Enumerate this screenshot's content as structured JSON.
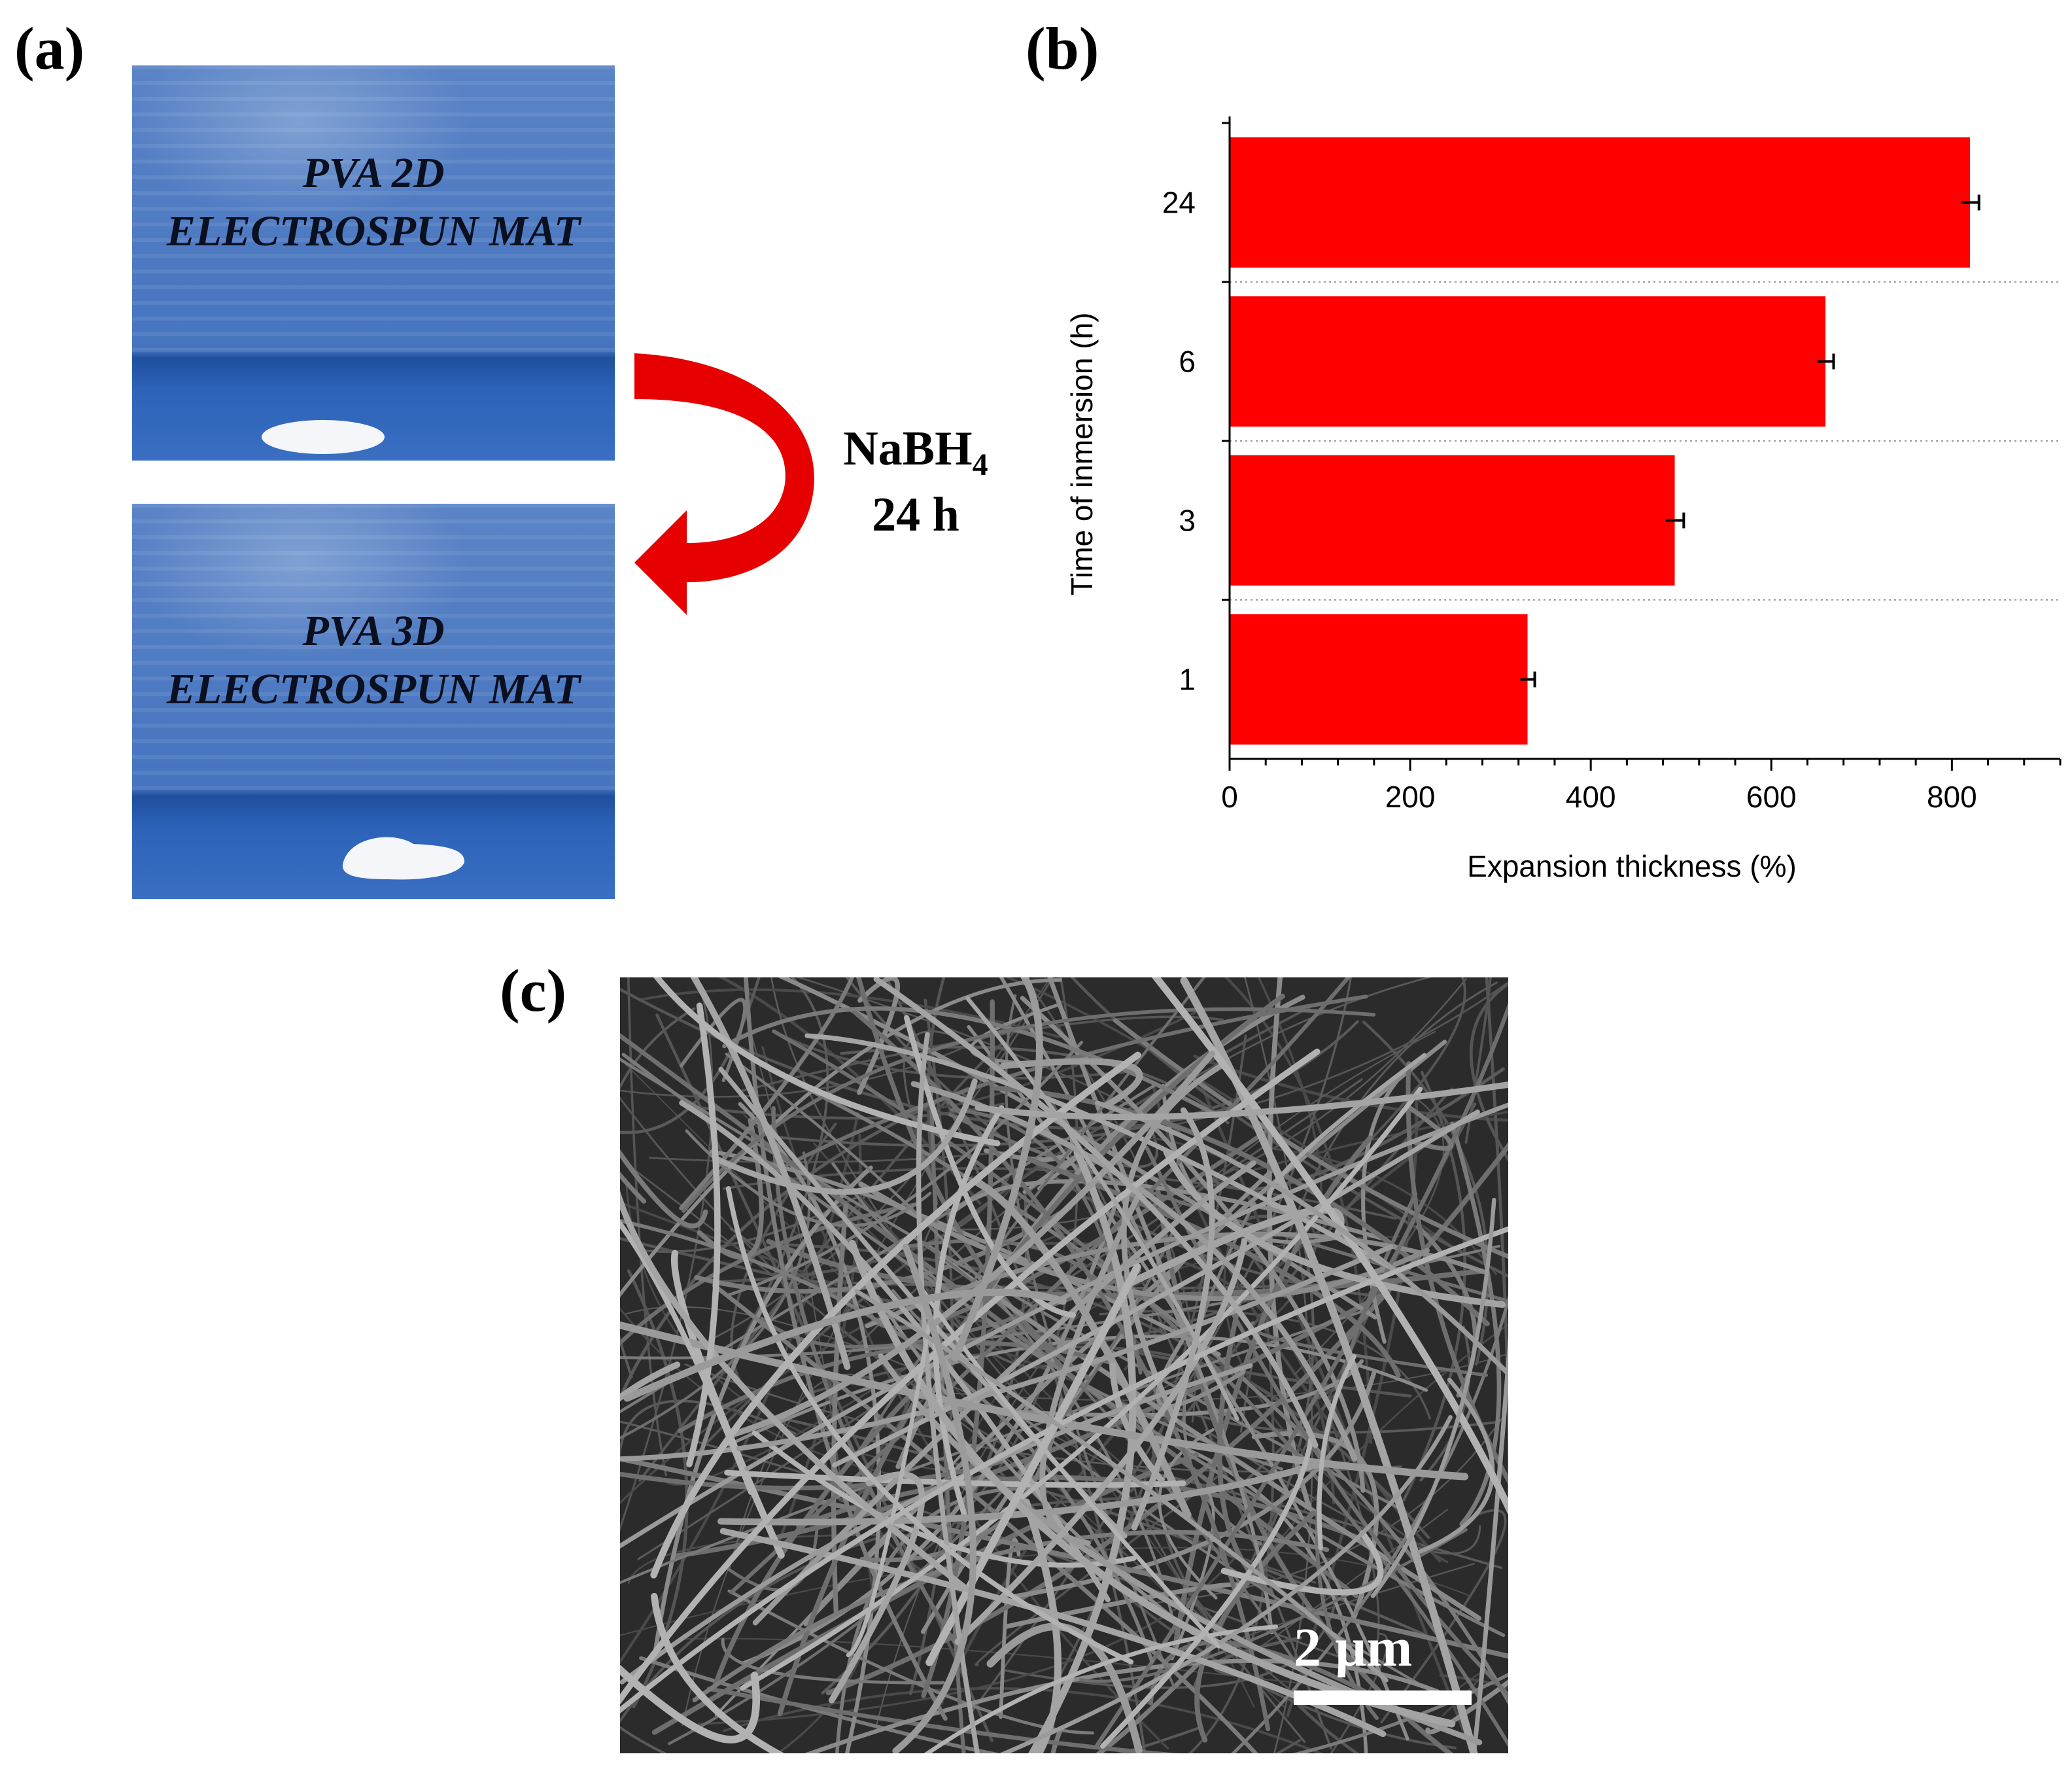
{
  "panels": {
    "a": "(a)",
    "b": "(b)",
    "c": "(c)"
  },
  "photo_top": {
    "line1": "PVA 2D",
    "line2": "ELECTROSPUN MAT"
  },
  "photo_bottom": {
    "line1": "PVA 3D",
    "line2": "ELECTROSPUN MAT"
  },
  "reagent": {
    "name": "NaBH",
    "subscript": "4",
    "time": "24 h"
  },
  "scale_bar": {
    "label": "2 µm"
  },
  "colors": {
    "bar": "#ff0000",
    "photo_blue": "#4a78c0",
    "arrow": "#e60000"
  },
  "chart_data": {
    "type": "bar",
    "orientation": "horizontal",
    "categories": [
      "24",
      "6",
      "3",
      "1"
    ],
    "values": [
      820,
      660,
      493,
      330
    ],
    "errors": [
      10,
      9,
      10,
      8
    ],
    "xlabel": "Expansion thickness (%)",
    "ylabel": "Time of inmersion (h)",
    "xlim": [
      0,
      920
    ],
    "xticks": [
      "0",
      "200",
      "400",
      "600",
      "800"
    ],
    "grid": "horizontal dotted"
  }
}
